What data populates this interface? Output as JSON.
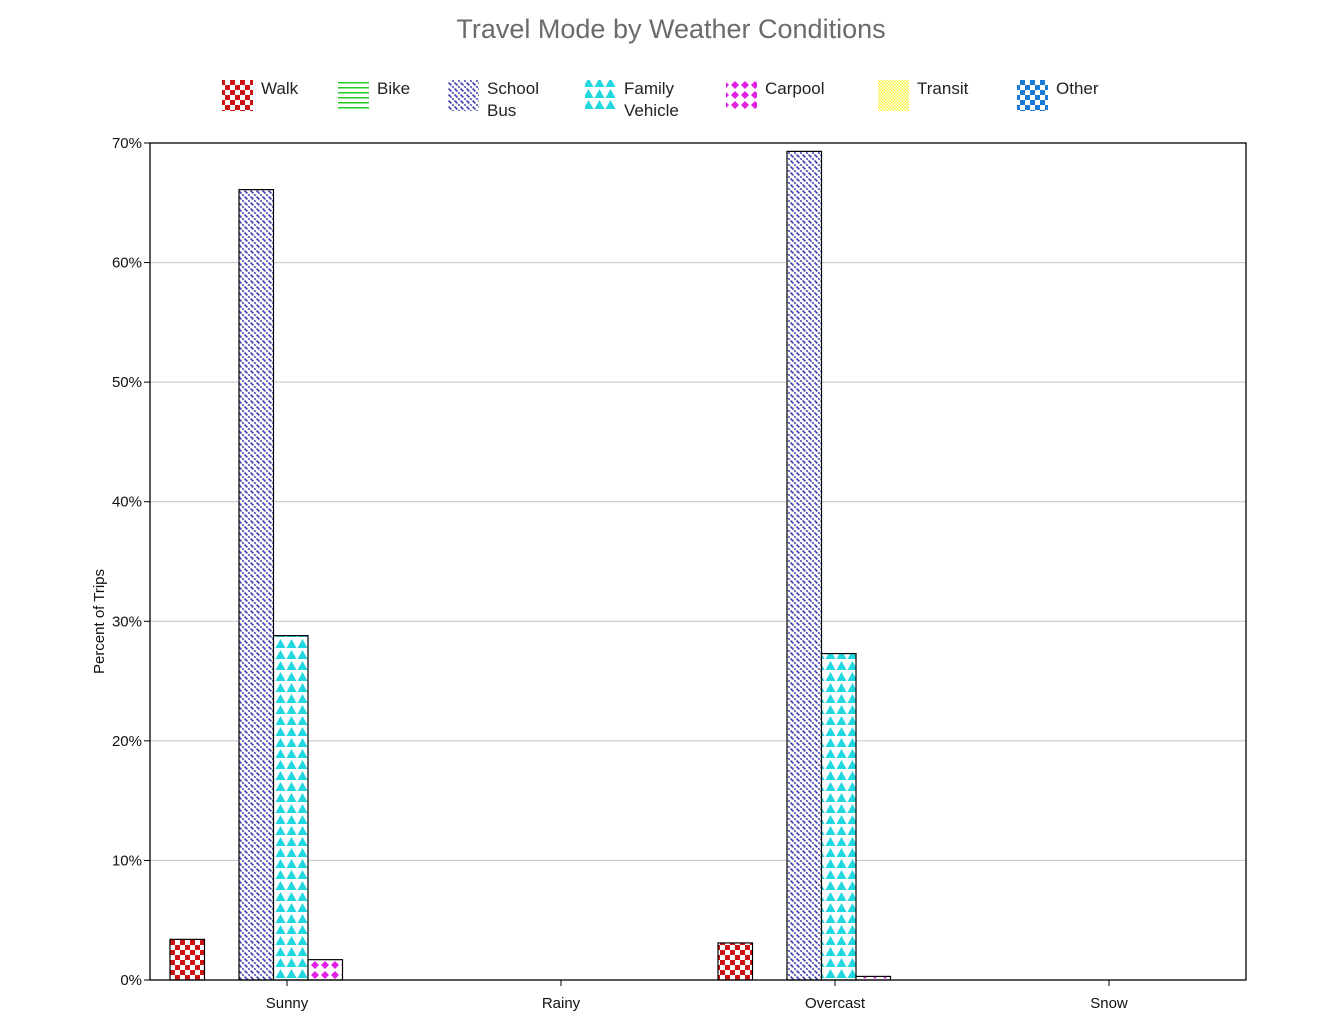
{
  "chart_data": {
    "type": "bar",
    "title": "Travel Mode by Weather Conditions",
    "xlabel": "",
    "ylabel": "Percent of Trips",
    "ylim": [
      0,
      70
    ],
    "yticks": [
      0,
      10,
      20,
      30,
      40,
      50,
      60,
      70
    ],
    "ytick_suffix": "%",
    "grid": true,
    "legend_position": "top",
    "categories": [
      "Sunny",
      "Rainy",
      "Overcast",
      "Snow"
    ],
    "series": [
      {
        "name": "Walk",
        "name_lines": [
          "Walk"
        ],
        "color": "#cc1111",
        "pattern": "checker",
        "values": [
          3.4,
          0,
          3.1,
          0
        ]
      },
      {
        "name": "Bike",
        "name_lines": [
          "Bike"
        ],
        "color": "#22cc22",
        "pattern": "hlines",
        "values": [
          0,
          0,
          0,
          0
        ]
      },
      {
        "name": "School Bus",
        "name_lines": [
          "School",
          "Bus"
        ],
        "color": "#3a3aaa",
        "pattern": "diagonal",
        "values": [
          66.1,
          0,
          69.3,
          0
        ]
      },
      {
        "name": "Family Vehicle",
        "name_lines": [
          "Family",
          "Vehicle"
        ],
        "color": "#22d8e0",
        "pattern": "triangles",
        "values": [
          28.8,
          0,
          27.3,
          0
        ]
      },
      {
        "name": "Carpool",
        "name_lines": [
          "Carpool"
        ],
        "color": "#e020e0",
        "pattern": "diamonds",
        "values": [
          1.7,
          0,
          0.3,
          0
        ]
      },
      {
        "name": "Transit",
        "name_lines": [
          "Transit"
        ],
        "color": "#f2f230",
        "pattern": "fine",
        "values": [
          0,
          0,
          0,
          0
        ]
      },
      {
        "name": "Other",
        "name_lines": [
          "Other"
        ],
        "color": "#1a7ad8",
        "pattern": "checker2",
        "values": [
          0,
          0,
          0,
          0
        ]
      }
    ]
  }
}
